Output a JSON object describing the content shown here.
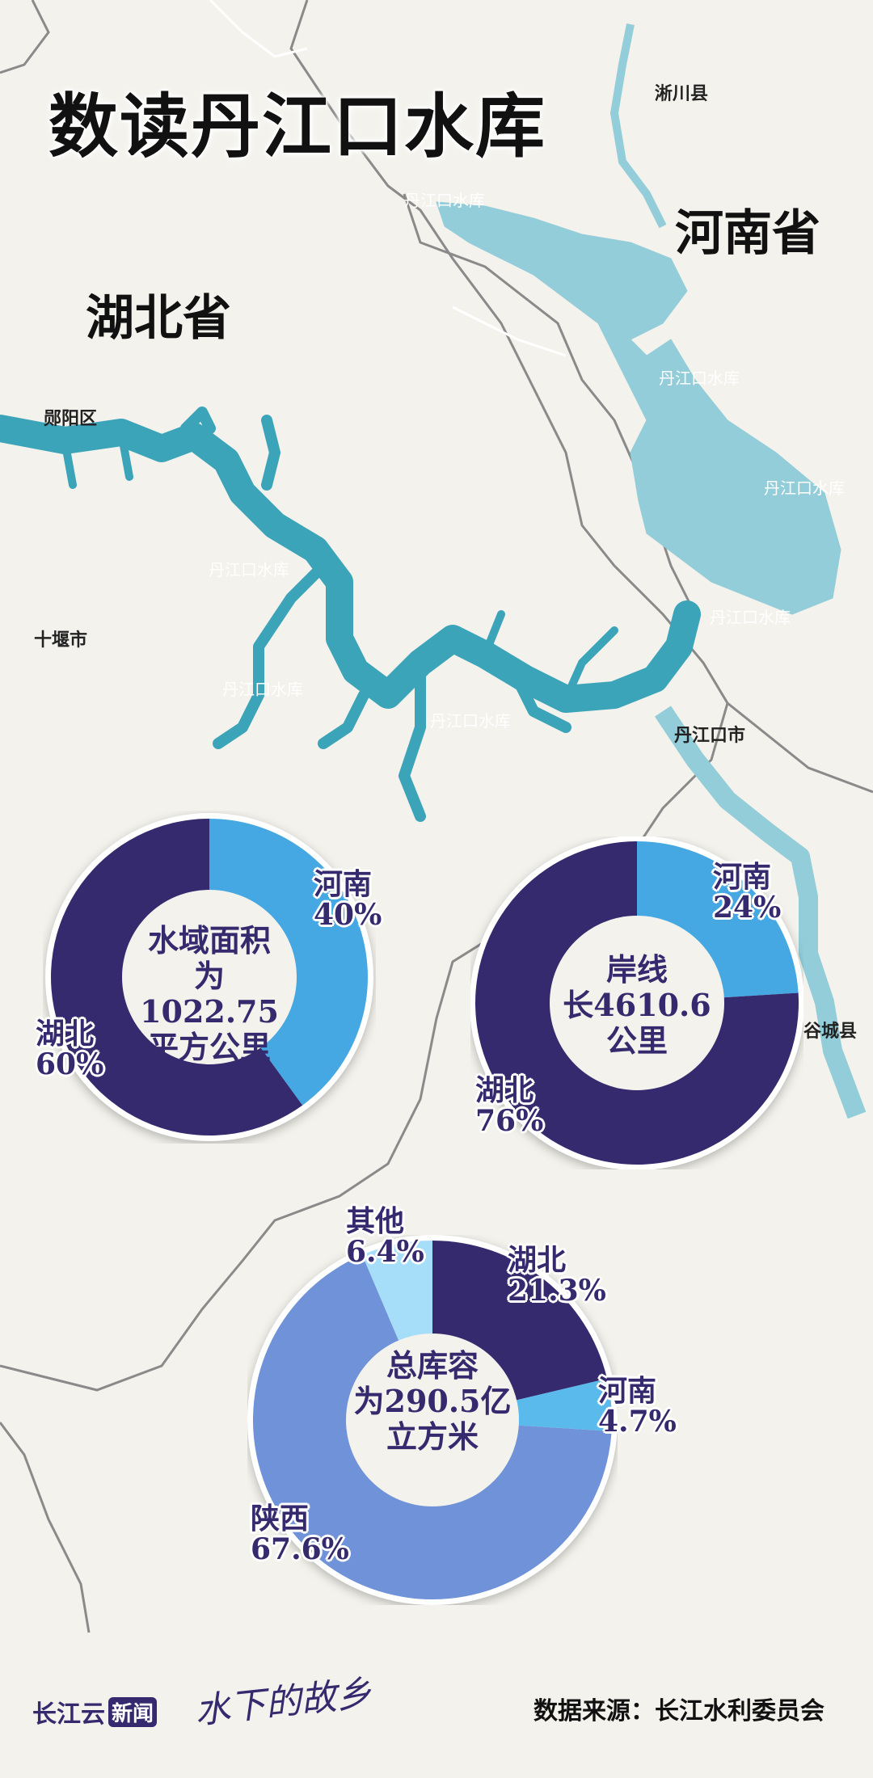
{
  "title": "数读丹江口水库",
  "provinces": {
    "henan": "河南省",
    "hubei": "湖北省"
  },
  "places": {
    "xichuan": "淅川县",
    "yunyang": "郧阳区",
    "shiyan": "十堰市",
    "danjiangkou_city": "丹江口市",
    "gucheng": "谷城县"
  },
  "reservoir_labels": [
    "丹江口水库",
    "丹江口水库",
    "丹江口水库",
    "丹江口水库",
    "丹江口水库",
    "丹江口水库",
    "丹江口水库"
  ],
  "colors": {
    "hubei": "#352a6e",
    "henan": "#45a8e2",
    "henan_capacity": "#5bbaec",
    "shaanxi": "#6f92d8",
    "other": "#a6defa",
    "reservoir_west": "#3ba4b9",
    "reservoir_east": "#93cdd9"
  },
  "chart_data": [
    {
      "type": "pie",
      "center_text": [
        "水域面积",
        "为1022.75",
        "平方公里"
      ],
      "slices": [
        {
          "name": "河南",
          "value": 40,
          "label": "40%",
          "color": "#45a8e2"
        },
        {
          "name": "湖北",
          "value": 60,
          "label": "60%",
          "color": "#352a6e"
        }
      ]
    },
    {
      "type": "pie",
      "center_text": [
        "岸线",
        "长4610.6",
        "公里"
      ],
      "slices": [
        {
          "name": "河南",
          "value": 24,
          "label": "24%",
          "color": "#45a8e2"
        },
        {
          "name": "湖北",
          "value": 76,
          "label": "76%",
          "color": "#352a6e"
        }
      ]
    },
    {
      "type": "pie",
      "center_text": [
        "总库容",
        "为290.5亿",
        "立方米"
      ],
      "slices": [
        {
          "name": "湖北",
          "value": 21.3,
          "label": "21.3%",
          "color": "#352a6e"
        },
        {
          "name": "河南",
          "value": 4.7,
          "label": "4.7%",
          "color": "#5bbaec"
        },
        {
          "name": "陕西",
          "value": 67.6,
          "label": "67.6%",
          "color": "#6f92d8"
        },
        {
          "name": "其他",
          "value": 6.4,
          "label": "6.4%",
          "color": "#a6defa"
        }
      ]
    }
  ],
  "footer": {
    "logo_changjiangyun": "长江云",
    "logo_news": "新闻",
    "logo_hometown": "水下的故乡",
    "source": "数据来源：长江水利委员会"
  }
}
